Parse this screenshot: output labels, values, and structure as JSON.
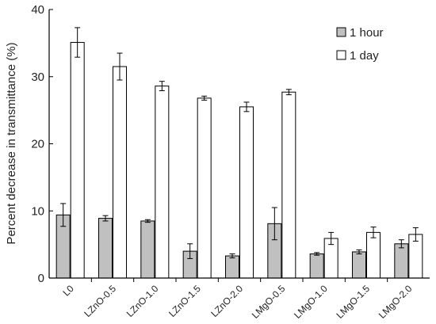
{
  "chart_data": {
    "type": "bar",
    "title": "",
    "xlabel": "",
    "ylabel": "Percent decrease in transmittance  (%)",
    "ylim": [
      0,
      40
    ],
    "yticks": [
      0,
      10,
      20,
      30,
      40
    ],
    "grid": false,
    "legend_position": "top-right",
    "categories": [
      "L0",
      "LZnO-0.5",
      "LZnO-1.0",
      "LZnO-1.5",
      "LZnO-2.0",
      "LMgO-0.5",
      "LMgO-1.0",
      "LMgO-1.5",
      "LMgO-2.0"
    ],
    "series": [
      {
        "name": "1 hour",
        "color": "#c0c0c0",
        "values": [
          9.4,
          8.9,
          8.5,
          4.0,
          3.3,
          8.1,
          3.6,
          3.9,
          5.1
        ],
        "errors": [
          1.7,
          0.4,
          0.2,
          1.1,
          0.3,
          2.4,
          0.2,
          0.3,
          0.6
        ]
      },
      {
        "name": "1 day",
        "color": "#ffffff",
        "values": [
          35.1,
          31.5,
          28.6,
          26.8,
          25.5,
          27.7,
          5.9,
          6.8,
          6.5
        ],
        "errors": [
          2.2,
          2.0,
          0.7,
          0.3,
          0.7,
          0.4,
          0.9,
          0.8,
          1.0
        ]
      }
    ]
  }
}
